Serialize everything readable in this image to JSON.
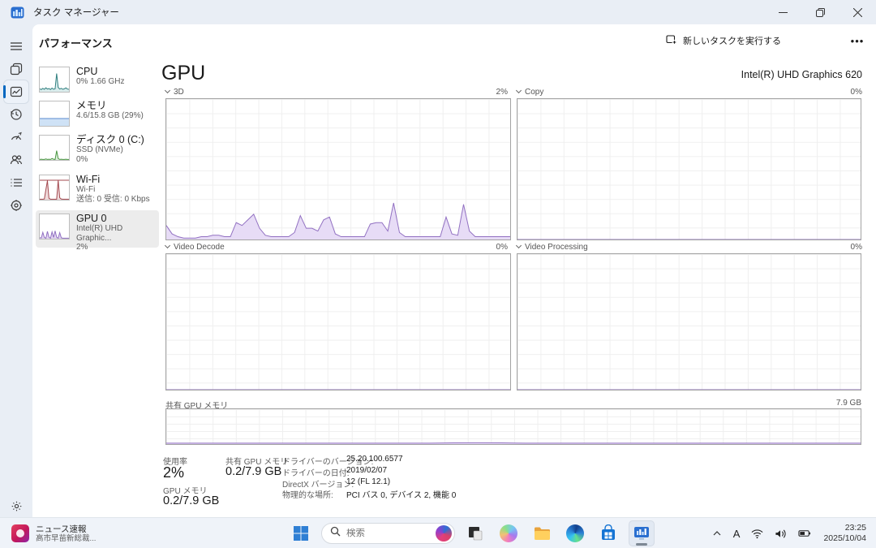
{
  "window": {
    "title": "タスク マネージャー"
  },
  "toolbar": {
    "page_title": "パフォーマンス",
    "run_new_task": "新しいタスクを実行する",
    "more": "•••"
  },
  "nav_icons": [
    "menu",
    "processes",
    "performance",
    "app-history",
    "startup-apps",
    "users",
    "details",
    "services",
    "settings"
  ],
  "perf_list": [
    {
      "title": "CPU",
      "lines": [
        "0% 1.66 GHz",
        ""
      ],
      "color": "#2e7e7e",
      "fill": "#d9ecec",
      "spark": [
        12,
        9,
        14,
        10,
        16,
        11,
        13,
        9,
        15,
        10,
        12,
        75,
        18,
        11,
        14,
        10,
        12,
        16,
        11,
        10
      ],
      "selected": false
    },
    {
      "title": "メモリ",
      "lines": [
        "4.6/15.8 GB (29%)",
        ""
      ],
      "color": "#5b8bd0",
      "fill": "#cfe2f6",
      "spark": [
        30,
        30,
        30,
        30,
        30,
        30,
        30,
        30,
        30,
        30
      ],
      "selected": false
    },
    {
      "title": "ディスク 0 (C:)",
      "lines": [
        "SSD (NVMe)",
        "0%"
      ],
      "color": "#4a9642",
      "fill": "#ddefdb",
      "spark": [
        2,
        3,
        2,
        2,
        4,
        2,
        3,
        2,
        6,
        3,
        2,
        38,
        6,
        2,
        3,
        2,
        2,
        3,
        2,
        2
      ],
      "selected": false
    },
    {
      "title": "Wi-Fi",
      "lines": [
        "Wi-Fi",
        "送信: 0 受信: 0 Kbps"
      ],
      "color": "#a3484f",
      "fill": "#f0dadb",
      "spark": [
        2,
        2,
        2,
        3,
        42,
        78,
        6,
        2,
        2,
        2,
        2,
        2,
        80,
        8,
        3,
        2,
        2,
        2,
        2,
        2
      ],
      "topline": 80,
      "selected": false
    },
    {
      "title": "GPU 0",
      "lines": [
        "Intel(R) UHD Graphic...",
        "2%"
      ],
      "color": "#9271c2",
      "fill": "#e3d6f2",
      "spark": [
        4,
        3,
        26,
        5,
        2,
        30,
        6,
        2,
        28,
        5,
        32,
        6,
        2,
        25,
        4,
        2,
        2,
        2,
        2,
        2
      ],
      "selected": true
    }
  ],
  "gpu": {
    "title": "GPU",
    "device": "Intel(R) UHD Graphics 620",
    "usage_label": "使用率",
    "usage_value": "2%",
    "shared_label": "共有 GPU メモリ",
    "shared_value": "0.2/7.9 GB",
    "gpumem_label": "GPU メモリ",
    "gpumem_value": "0.2/7.9 GB",
    "details": [
      {
        "label": "ドライバーのバージョン:",
        "value": "25.20.100.6577"
      },
      {
        "label": "ドライバーの日付:",
        "value": "2019/02/07"
      },
      {
        "label": "DirectX バージョン:",
        "value": "12 (FL 12.1)"
      },
      {
        "label": "物理的な場所:",
        "value": "PCI バス 0, デバイス 2, 機能 0"
      }
    ]
  },
  "chart_data": [
    {
      "type": "area",
      "title": "3D",
      "right_label": "2%",
      "ylim": [
        0,
        100
      ],
      "color": "#9271c2",
      "fill": "#e7dcf6",
      "grid": true,
      "values": [
        10,
        4,
        2,
        1,
        1,
        1,
        2,
        2,
        3,
        3,
        2,
        2,
        12,
        10,
        14,
        18,
        8,
        3,
        2,
        2,
        2,
        2,
        5,
        17,
        8,
        8,
        6,
        14,
        16,
        4,
        2,
        2,
        2,
        2,
        2,
        11,
        12,
        12,
        6,
        26,
        5,
        2,
        2,
        2,
        2,
        2,
        2,
        2,
        16,
        4,
        3,
        25,
        6,
        2,
        2,
        2,
        2,
        2,
        2,
        2
      ]
    },
    {
      "type": "area",
      "title": "Copy",
      "right_label": "0%",
      "ylim": [
        0,
        100
      ],
      "color": "#9271c2",
      "fill": "#e7dcf6",
      "grid": true,
      "values": [
        0,
        0
      ]
    },
    {
      "type": "area",
      "title": "Video Decode",
      "right_label": "0%",
      "ylim": [
        0,
        100
      ],
      "color": "#9271c2",
      "fill": "#e7dcf6",
      "grid": true,
      "values": [
        0,
        0
      ]
    },
    {
      "type": "area",
      "title": "Video Processing",
      "right_label": "0%",
      "ylim": [
        0,
        100
      ],
      "color": "#9271c2",
      "fill": "#e7dcf6",
      "grid": true,
      "values": [
        0,
        0
      ]
    },
    {
      "type": "area",
      "title": "共有 GPU メモリ",
      "right_label": "7.9 GB",
      "ylim": [
        0,
        7.9
      ],
      "color": "#9271c2",
      "fill": "#e7dcf6",
      "grid": true,
      "values": [
        0.2,
        0.2,
        0.2,
        0.2,
        0.2,
        0.2,
        0.2,
        0.2,
        0.2,
        0.2,
        0.2,
        0.2,
        0.28,
        0.3,
        0.28,
        0.2,
        0.2,
        0.2,
        0.2,
        0.2,
        0.2,
        0.2,
        0.2,
        0.2,
        0.2,
        0.2,
        0.2,
        0.2,
        0.2,
        0.2
      ]
    }
  ],
  "taskbar": {
    "widget_line1": "ニュース速報",
    "widget_line2": "高市早苗新総裁...",
    "search_placeholder": "検索",
    "tray_ime": "A",
    "time": "23:25",
    "date": "2025/10/04"
  }
}
